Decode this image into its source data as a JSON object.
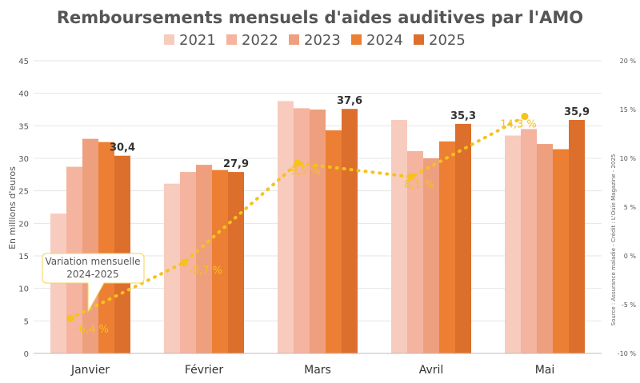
{
  "chart_data": {
    "type": "bar",
    "title": "Remboursements mensuels d'aides auditives par l'AMO",
    "ylabel": "En millions d'euros",
    "source_note": "Source : Assurance maladie - Crédit : L'Ouïe Magazine - 2025",
    "categories": [
      "Janvier",
      "Février",
      "Mars",
      "Avril",
      "Mai"
    ],
    "ylim": [
      0,
      45
    ],
    "yticks": [
      "0",
      "5",
      "10",
      "15",
      "20",
      "25",
      "30",
      "35",
      "40",
      "45"
    ],
    "y2lim": [
      -10,
      20
    ],
    "y2ticks": [
      "-10 %",
      "-5 %",
      "0 %",
      "5 %",
      "10 %",
      "15 %",
      "20 %"
    ],
    "grid": true,
    "legend_position": "top",
    "series": [
      {
        "name": "2021",
        "color": "#f7cbbd",
        "values": [
          21.5,
          26.1,
          38.8,
          35.9,
          33.5
        ]
      },
      {
        "name": "2022",
        "color": "#f4b49f",
        "values": [
          28.7,
          27.9,
          37.7,
          31.1,
          34.5
        ]
      },
      {
        "name": "2023",
        "color": "#ee9f7e",
        "values": [
          33.0,
          29.0,
          37.5,
          30.0,
          32.2
        ]
      },
      {
        "name": "2024",
        "color": "#ec7f33",
        "values": [
          32.5,
          28.2,
          34.3,
          32.6,
          31.4
        ]
      },
      {
        "name": "2025",
        "color": "#dd6f2c",
        "values": [
          30.4,
          27.9,
          37.6,
          35.3,
          35.9
        ]
      }
    ],
    "value_labels": [
      "30,4",
      "27,9",
      "37,6",
      "35,3",
      "35,9"
    ],
    "variation": {
      "name": "Variation mensuelle 2024-2025",
      "color": "#f6c21c",
      "values": [
        -6.4,
        -0.7,
        9.5,
        8.1,
        14.3
      ],
      "labels": [
        "-6,4 %",
        "-0,7 %",
        "9,5 %",
        "8,1 %",
        "14,3 %"
      ],
      "callout_line1": "Variation mensuelle",
      "callout_line2": "2024-2025"
    }
  }
}
